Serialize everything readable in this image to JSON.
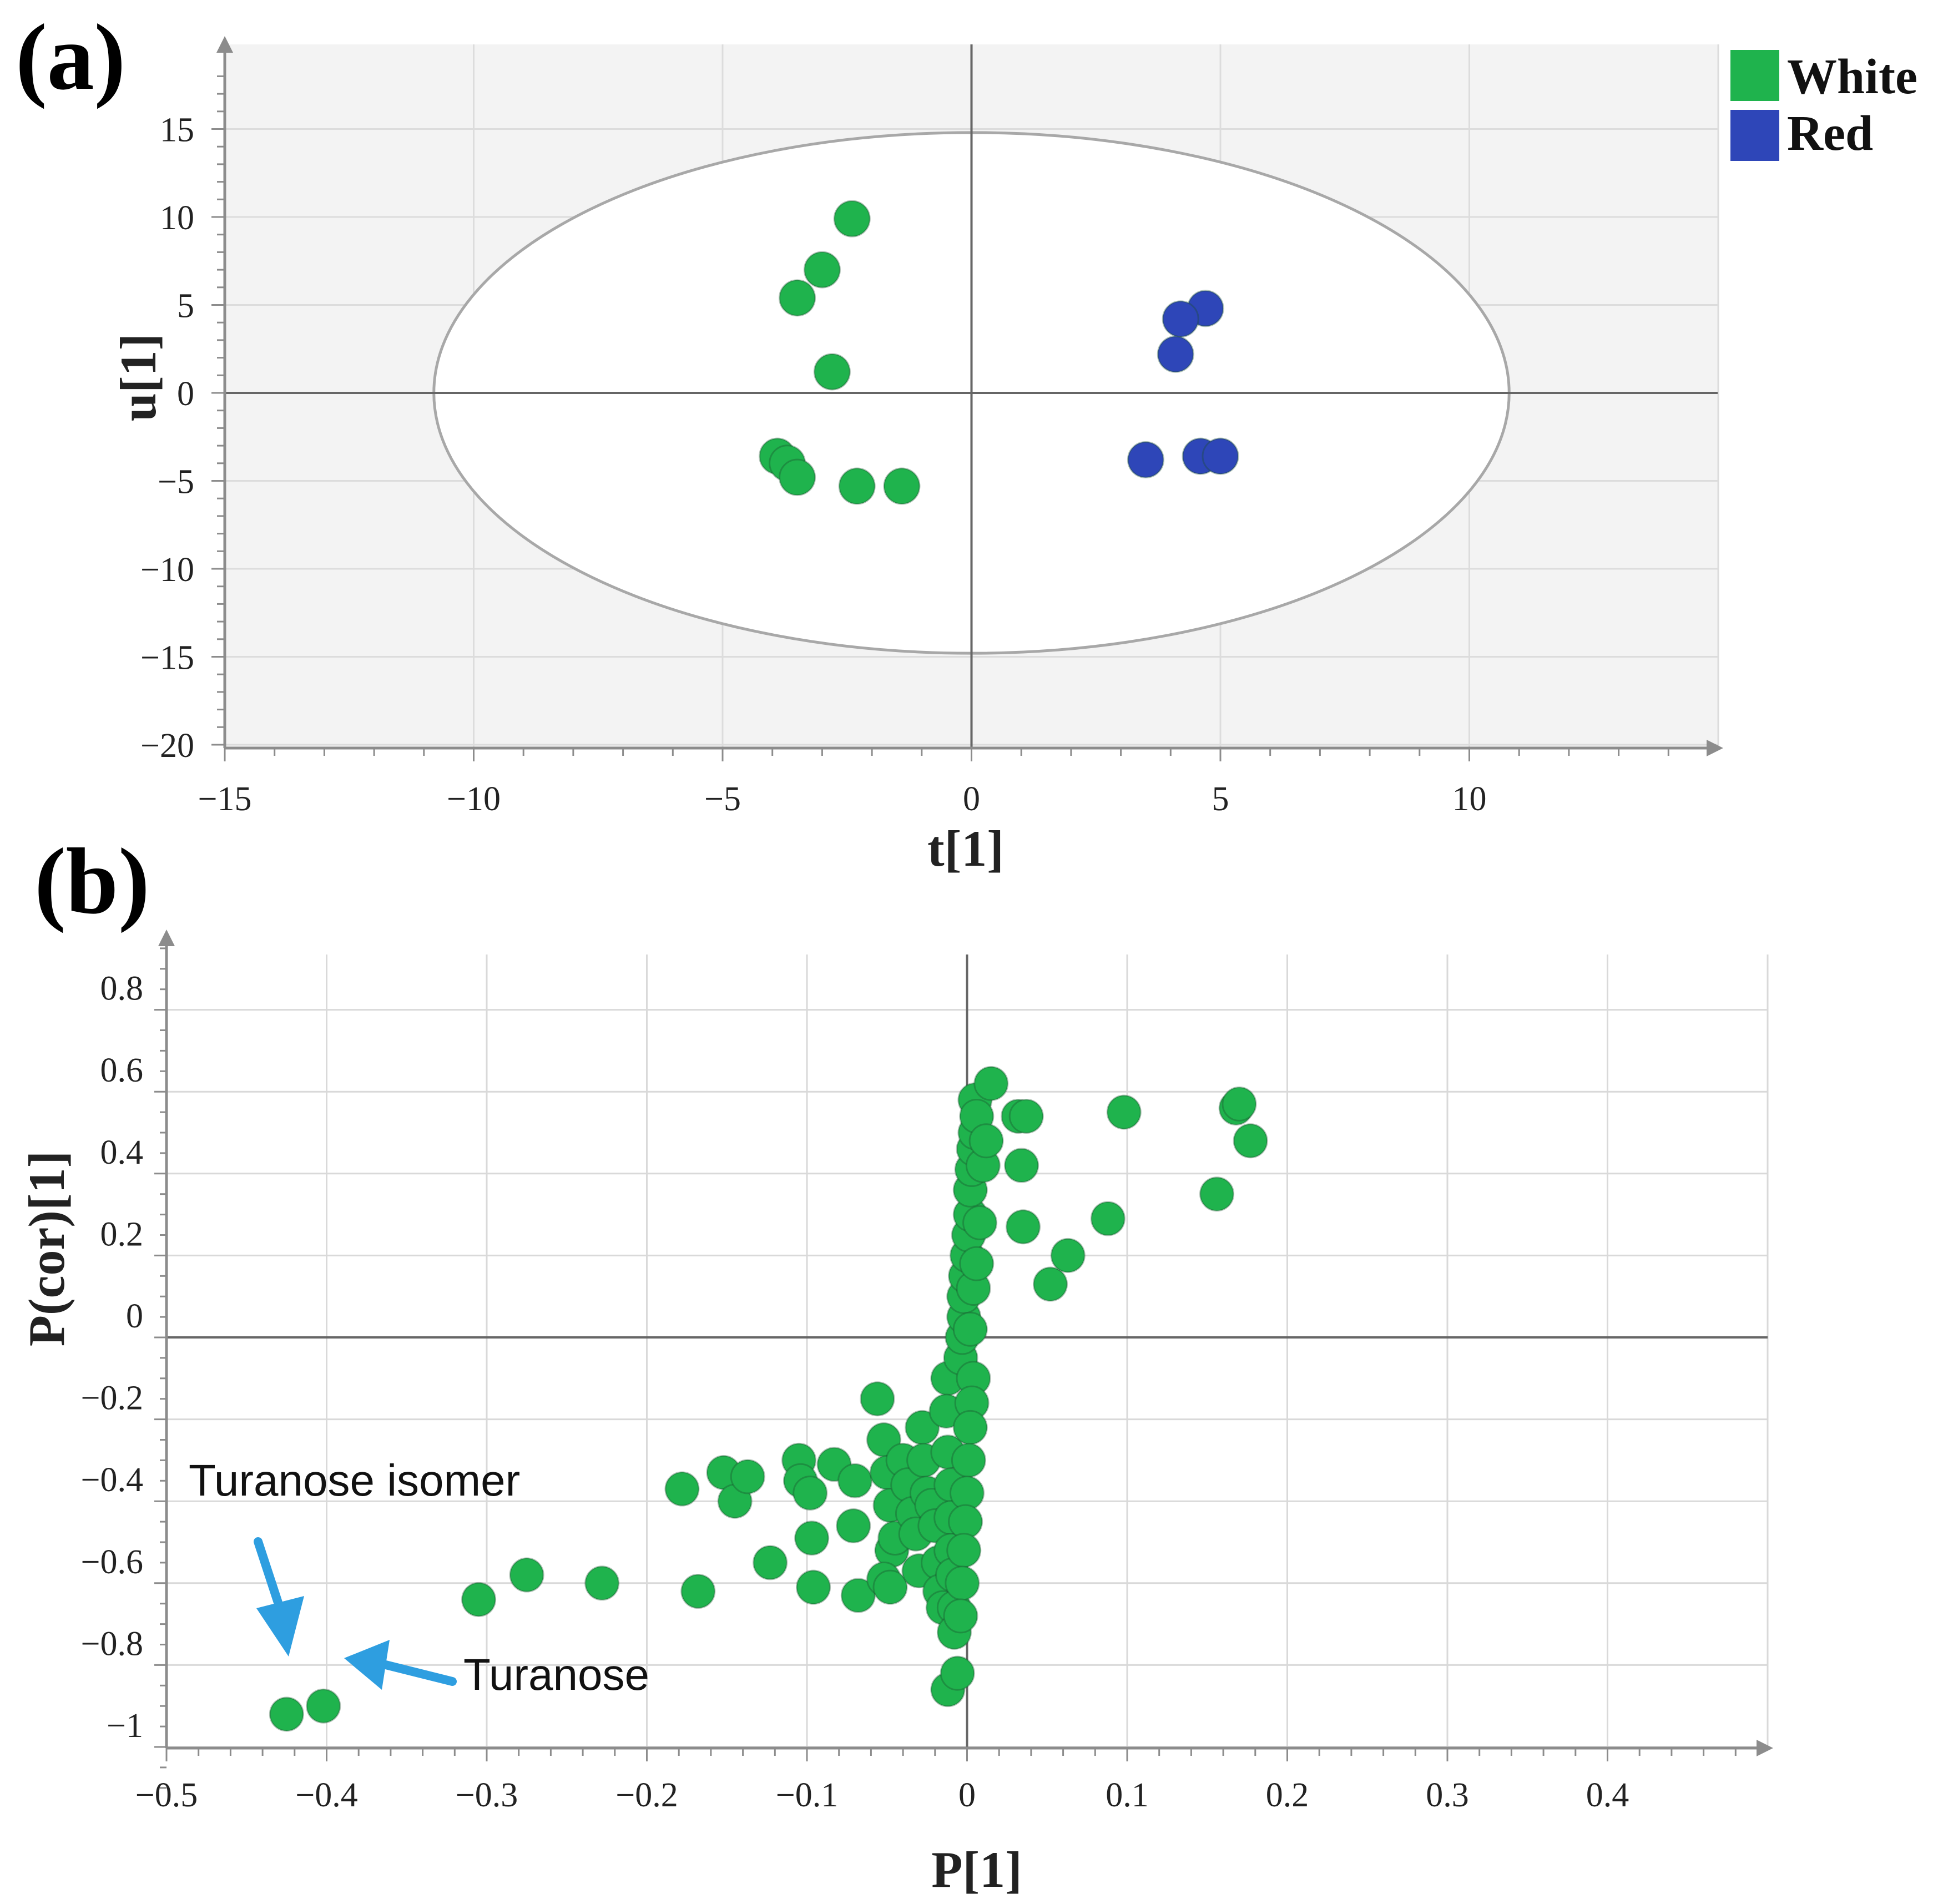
{
  "colors": {
    "white_group": "#1fb34d",
    "red_group": "#2e46b8",
    "arrow": "#2e9ee0"
  },
  "legend": [
    {
      "name": "White",
      "color": "#1fb34d"
    },
    {
      "name": "Red",
      "color": "#2e46b8"
    }
  ],
  "chart_data": [
    {
      "panel": "(a)",
      "type": "scatter",
      "xlabel": "t[1]",
      "ylabel": "u[1]",
      "xlim": [
        -15,
        15
      ],
      "ylim": [
        -20,
        20
      ],
      "xticks": [
        -15,
        -10,
        -5,
        0,
        5,
        10
      ],
      "yticks": [
        -20,
        -15,
        -10,
        -5,
        0,
        5,
        10,
        15
      ],
      "ellipse": {
        "center": [
          0,
          0
        ],
        "semi_x": 10.8,
        "semi_y": 14.8
      },
      "grid": true,
      "series": [
        {
          "name": "White",
          "points": [
            [
              -2.4,
              9.9
            ],
            [
              -3.0,
              7.0
            ],
            [
              -3.5,
              5.4
            ],
            [
              -2.8,
              1.2
            ],
            [
              -3.9,
              -3.6
            ],
            [
              -3.7,
              -4.0
            ],
            [
              -3.5,
              -4.8
            ],
            [
              -2.3,
              -5.3
            ],
            [
              -1.4,
              -5.3
            ]
          ]
        },
        {
          "name": "Red",
          "points": [
            [
              4.7,
              4.8
            ],
            [
              4.2,
              4.2
            ],
            [
              4.1,
              2.2
            ],
            [
              3.5,
              -3.8
            ],
            [
              4.6,
              -3.6
            ],
            [
              5.0,
              -3.6
            ]
          ]
        }
      ]
    },
    {
      "panel": "(b)",
      "type": "scatter",
      "xlabel": "P[1]",
      "ylabel": "P(cor)[1]",
      "xlim": [
        -0.5,
        0.5
      ],
      "ylim": [
        -1.1,
        1.0
      ],
      "xticks": [
        -0.5,
        -0.4,
        -0.3,
        -0.2,
        -0.1,
        0,
        0.1,
        0.2,
        0.3,
        0.4
      ],
      "yticks": [
        0.8,
        0.6,
        0.4,
        0.2,
        0,
        -0.2,
        -0.4,
        -0.6,
        -0.8,
        -1
      ],
      "grid": true,
      "series": [
        {
          "name": "White",
          "points": [
            [
              -0.425,
              -0.92
            ],
            [
              -0.402,
              -0.9
            ],
            [
              -0.305,
              -0.64
            ],
            [
              -0.275,
              -0.58
            ],
            [
              -0.228,
              -0.6
            ],
            [
              -0.178,
              -0.37
            ],
            [
              -0.168,
              -0.62
            ],
            [
              -0.152,
              -0.33
            ],
            [
              -0.145,
              -0.4
            ],
            [
              -0.137,
              -0.34
            ],
            [
              -0.123,
              -0.55
            ],
            [
              -0.105,
              -0.3
            ],
            [
              -0.104,
              -0.35
            ],
            [
              -0.098,
              -0.38
            ],
            [
              -0.097,
              -0.49
            ],
            [
              -0.096,
              -0.61
            ],
            [
              -0.083,
              -0.31
            ],
            [
              -0.07,
              -0.35
            ],
            [
              -0.071,
              -0.46
            ],
            [
              -0.068,
              -0.63
            ],
            [
              -0.056,
              -0.15
            ],
            [
              -0.052,
              -0.25
            ],
            [
              -0.05,
              -0.33
            ],
            [
              -0.048,
              -0.41
            ],
            [
              -0.047,
              -0.52
            ],
            [
              -0.052,
              -0.59
            ],
            [
              -0.048,
              -0.61
            ],
            [
              -0.045,
              -0.49
            ],
            [
              -0.04,
              -0.3
            ],
            [
              -0.037,
              -0.36
            ],
            [
              -0.034,
              -0.43
            ],
            [
              -0.032,
              -0.48
            ],
            [
              -0.03,
              -0.57
            ],
            [
              -0.028,
              -0.22
            ],
            [
              -0.027,
              -0.3
            ],
            [
              -0.025,
              -0.38
            ],
            [
              -0.022,
              -0.41
            ],
            [
              -0.02,
              -0.46
            ],
            [
              -0.018,
              -0.55
            ],
            [
              -0.017,
              -0.62
            ],
            [
              -0.015,
              -0.66
            ],
            [
              -0.012,
              -0.1
            ],
            [
              -0.013,
              -0.18
            ],
            [
              -0.012,
              -0.28
            ],
            [
              -0.01,
              -0.36
            ],
            [
              -0.01,
              -0.44
            ],
            [
              -0.01,
              -0.52
            ],
            [
              -0.009,
              -0.58
            ],
            [
              -0.008,
              -0.66
            ],
            [
              -0.008,
              -0.72
            ],
            [
              -0.012,
              -0.86
            ],
            [
              -0.006,
              -0.82
            ],
            [
              -0.004,
              -0.05
            ],
            [
              -0.003,
              0.0
            ],
            [
              -0.002,
              0.05
            ],
            [
              -0.002,
              0.1
            ],
            [
              -0.001,
              0.15
            ],
            [
              0.0,
              0.2
            ],
            [
              0.001,
              0.25
            ],
            [
              0.002,
              0.3
            ],
            [
              0.002,
              0.36
            ],
            [
              0.003,
              0.41
            ],
            [
              0.004,
              0.46
            ],
            [
              0.005,
              0.5
            ],
            [
              0.005,
              0.58
            ],
            [
              0.006,
              0.54
            ],
            [
              0.004,
              -0.1
            ],
            [
              0.003,
              -0.16
            ],
            [
              0.002,
              -0.22
            ],
            [
              0.001,
              -0.3
            ],
            [
              0.0,
              -0.38
            ],
            [
              -0.001,
              -0.45
            ],
            [
              -0.002,
              -0.52
            ],
            [
              -0.003,
              -0.6
            ],
            [
              -0.004,
              -0.68
            ],
            [
              0.002,
              0.02
            ],
            [
              0.004,
              0.12
            ],
            [
              0.006,
              0.18
            ],
            [
              0.008,
              0.28
            ],
            [
              0.01,
              0.42
            ],
            [
              0.012,
              0.48
            ],
            [
              0.015,
              0.62
            ],
            [
              0.032,
              0.54
            ],
            [
              0.037,
              0.54
            ],
            [
              0.034,
              0.42
            ],
            [
              0.035,
              0.27
            ],
            [
              0.052,
              0.13
            ],
            [
              0.063,
              0.2
            ],
            [
              0.088,
              0.29
            ],
            [
              0.098,
              0.55
            ],
            [
              0.156,
              0.35
            ],
            [
              0.168,
              0.56
            ],
            [
              0.17,
              0.57
            ],
            [
              0.177,
              0.48
            ]
          ]
        }
      ],
      "annotations": [
        {
          "text": "Turanose isomer"
        },
        {
          "text": "Turanose"
        }
      ]
    }
  ]
}
